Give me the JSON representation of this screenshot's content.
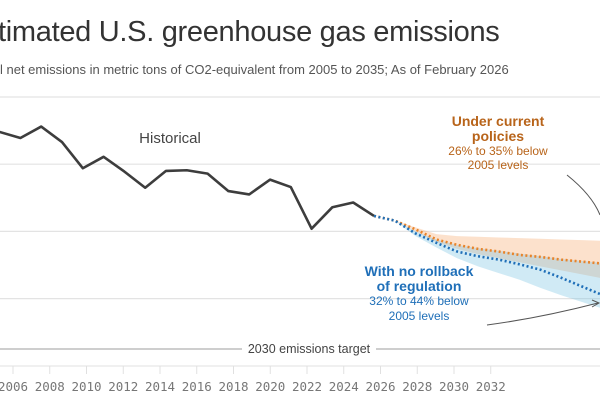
{
  "header": {
    "title": "timated U.S. greenhouse gas emissions",
    "subtitle": "l net emissions in metric tons of CO2-equivalent from 2005 to 2035; As of February 2026"
  },
  "colors": {
    "historical": "#3d3d3d",
    "current_policies": "#e8832a",
    "current_policies_text": "#b8641a",
    "no_rollback": "#1f6fb8",
    "no_rollback_text": "#1f6fb8",
    "grid": "#e3e3e3",
    "target": "#bdbdbd"
  },
  "chart_data": {
    "type": "line",
    "x_tick_labels": [
      "2006",
      "2008",
      "2010",
      "2012",
      "2014",
      "2016",
      "2018",
      "2020",
      "2022",
      "2024",
      "2026",
      "2028",
      "2030",
      "2032"
    ],
    "ylim": [
      3,
      7
    ],
    "grid": true,
    "series": [
      {
        "name": "Historical",
        "style": "solid",
        "x": [
          2005,
          2006,
          2007,
          2008,
          2009,
          2010,
          2011,
          2012,
          2013,
          2014,
          2015,
          2016,
          2017,
          2018,
          2019,
          2020,
          2021,
          2022,
          2023
        ],
        "y": [
          6.48,
          6.39,
          6.56,
          6.33,
          5.94,
          6.11,
          5.89,
          5.65,
          5.9,
          5.91,
          5.86,
          5.6,
          5.55,
          5.77,
          5.66,
          5.04,
          5.36,
          5.43,
          5.23
        ]
      },
      {
        "name": "Under current policies",
        "style": "dotted",
        "x": [
          2023,
          2024,
          2025,
          2026,
          2027,
          2028,
          2029,
          2030,
          2031,
          2032,
          2033,
          2034
        ],
        "y": [
          5.23,
          5.16,
          5.03,
          4.88,
          4.8,
          4.74,
          4.7,
          4.65,
          4.62,
          4.58,
          4.55,
          4.52
        ],
        "band_upper": [
          5.23,
          5.16,
          5.06,
          4.96,
          4.93,
          4.92,
          4.91,
          4.9,
          4.89,
          4.88,
          4.87,
          4.86
        ],
        "band_lower": [
          5.23,
          5.16,
          5.0,
          4.84,
          4.74,
          4.66,
          4.6,
          4.54,
          4.48,
          4.42,
          4.36,
          4.3
        ]
      },
      {
        "name": "With no rollback of regulation",
        "style": "dotted",
        "x": [
          2023,
          2024,
          2025,
          2026,
          2027,
          2028,
          2029,
          2030,
          2031,
          2032,
          2033,
          2034
        ],
        "y": [
          5.23,
          5.16,
          4.97,
          4.83,
          4.7,
          4.63,
          4.58,
          4.51,
          4.43,
          4.31,
          4.18,
          4.05
        ],
        "band_upper": [
          5.23,
          5.16,
          5.0,
          4.88,
          4.8,
          4.75,
          4.71,
          4.67,
          4.63,
          4.59,
          4.56,
          4.53
        ],
        "band_lower": [
          5.23,
          5.16,
          4.93,
          4.76,
          4.6,
          4.48,
          4.38,
          4.28,
          4.16,
          4.05,
          3.95,
          3.85
        ]
      }
    ],
    "reference_line": {
      "label": "2030 emissions target",
      "y": 3.25
    },
    "annotations": {
      "historical": "Historical",
      "current_title_1": "Under current",
      "current_title_2": "policies",
      "current_range_1": "26% to 35% below",
      "current_range_2": "2005 levels",
      "rollback_title_1": "With no rollback",
      "rollback_title_2": "of regulation",
      "rollback_range_1": "32% to 44% below",
      "rollback_range_2": "2005 levels"
    }
  }
}
